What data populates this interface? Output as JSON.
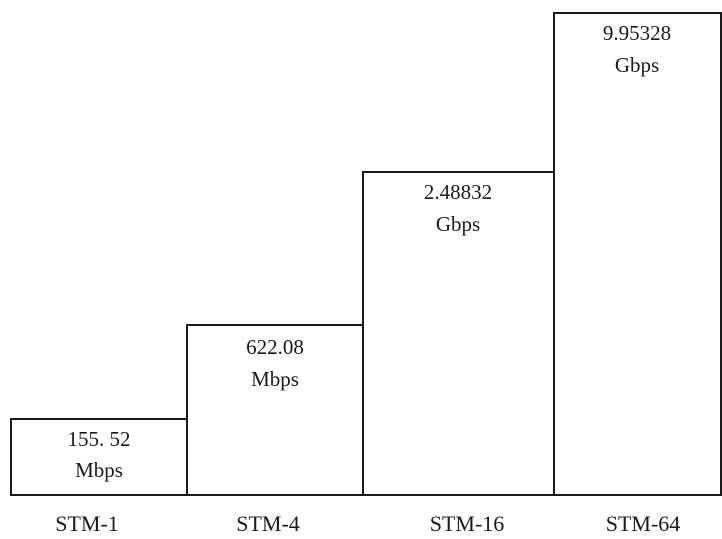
{
  "diagram": {
    "type": "staircase",
    "levels": [
      {
        "label": "STM-1",
        "rate": "155. 52",
        "unit": "Mbps"
      },
      {
        "label": "STM-4",
        "rate": "622.08",
        "unit": "Mbps"
      },
      {
        "label": "STM-16",
        "rate": "2.48832",
        "unit": "Gbps"
      },
      {
        "label": "STM-64",
        "rate": "9.95328",
        "unit": "Gbps"
      }
    ]
  }
}
